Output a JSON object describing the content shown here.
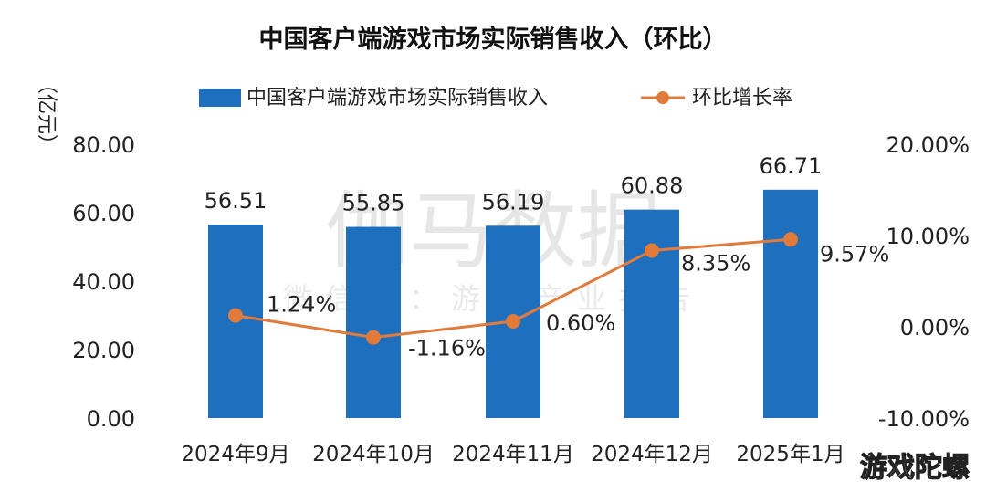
{
  "chart_data": {
    "type": "bar",
    "title": "中国客户端游戏市场实际销售收入（环比）",
    "ylabel": "（亿元）",
    "categories": [
      "2024年9月",
      "2024年10月",
      "2024年11月",
      "2024年12月",
      "2025年1月"
    ],
    "ylim": [
      0,
      80
    ],
    "y_ticks": [
      "0.00",
      "20.00",
      "40.00",
      "60.00",
      "80.00"
    ],
    "y2lim": [
      -10,
      20
    ],
    "y2_ticks": [
      "-10.00%",
      "0.00%",
      "10.00%",
      "20.00%"
    ],
    "legend_position": "top",
    "grid": false,
    "series": [
      {
        "name": "中国客户端游戏市场实际销售收入",
        "type": "bar",
        "axis": "left",
        "color": "#1f6fbf",
        "values": [
          56.51,
          55.85,
          56.19,
          60.88,
          66.71
        ],
        "labels": [
          "56.51",
          "55.85",
          "56.19",
          "60.88",
          "66.71"
        ]
      },
      {
        "name": "环比增长率",
        "type": "line",
        "axis": "right",
        "color": "#e07b3c",
        "values": [
          1.24,
          -1.16,
          0.6,
          8.35,
          9.57
        ],
        "labels": [
          "1.24%",
          "-1.16%",
          "0.60%",
          "8.35%",
          "9.57%"
        ]
      }
    ]
  },
  "watermark": {
    "main": "伽马数据",
    "sub": "微信号：游戏产业报告"
  },
  "corner_text": "游戏陀螺"
}
